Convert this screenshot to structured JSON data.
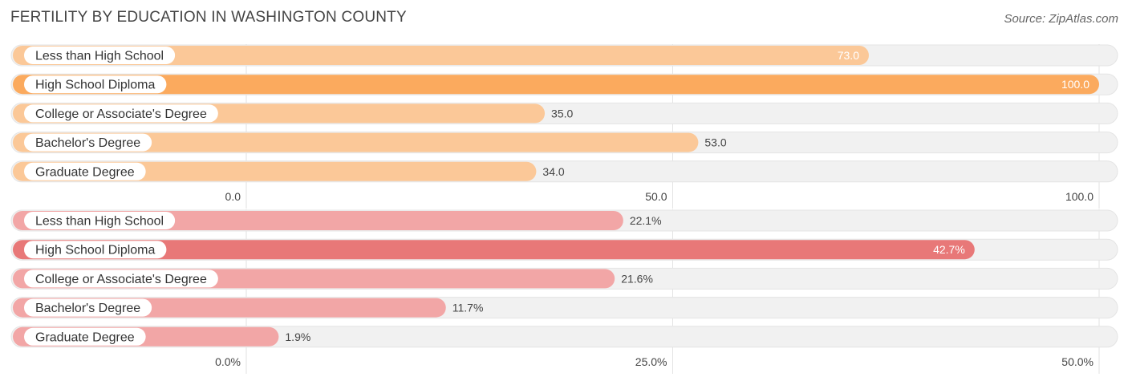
{
  "header": {
    "title": "FERTILITY BY EDUCATION IN WASHINGTON COUNTY",
    "source": "Source: ZipAtlas.com"
  },
  "colors": {
    "orange_light": "#fbc898",
    "orange_strong": "#fbaa5e",
    "red_light": "#f2a6a6",
    "red_strong": "#e87878",
    "track": "#f1f1f1"
  },
  "chart_data": [
    {
      "type": "bar",
      "orientation": "horizontal",
      "categories": [
        "Less than High School",
        "High School Diploma",
        "College or Associate's Degree",
        "Bachelor's Degree",
        "Graduate Degree"
      ],
      "values": [
        73.0,
        100.0,
        35.0,
        53.0,
        34.0
      ],
      "value_labels": [
        "73.0",
        "100.0",
        "35.0",
        "53.0",
        "34.0"
      ],
      "xlim": [
        0,
        100
      ],
      "ticks": [
        0,
        50,
        100
      ],
      "tick_labels": [
        "0.0",
        "50.0",
        "100.0"
      ],
      "highlight_index": 1
    },
    {
      "type": "bar",
      "orientation": "horizontal",
      "categories": [
        "Less than High School",
        "High School Diploma",
        "College or Associate's Degree",
        "Bachelor's Degree",
        "Graduate Degree"
      ],
      "values": [
        22.1,
        42.7,
        21.6,
        11.7,
        1.9
      ],
      "value_labels": [
        "22.1%",
        "42.7%",
        "21.6%",
        "11.7%",
        "1.9%"
      ],
      "xlim": [
        0,
        50
      ],
      "ticks": [
        0,
        25,
        50
      ],
      "tick_labels": [
        "0.0%",
        "25.0%",
        "50.0%"
      ],
      "highlight_index": 1
    }
  ]
}
